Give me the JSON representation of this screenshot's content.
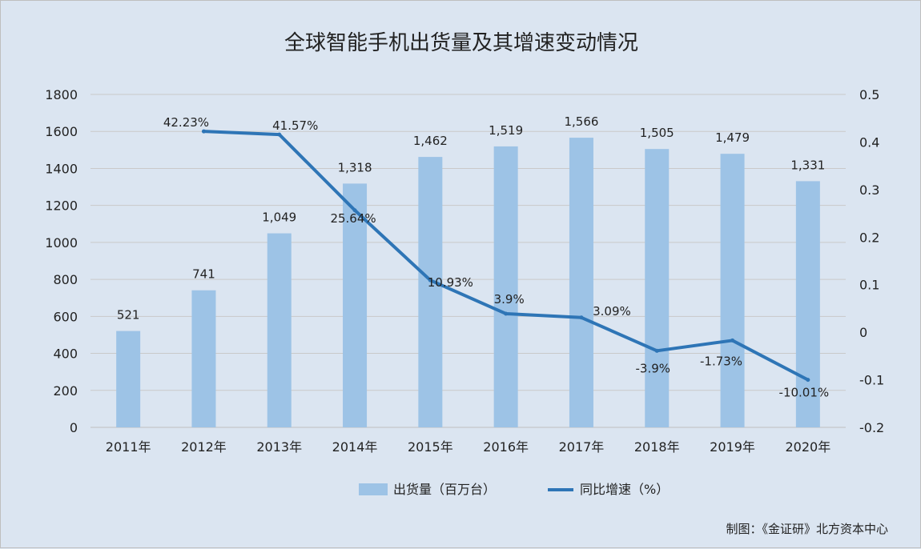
{
  "chart_data": {
    "type": "bar",
    "title": "全球智能手机出货量及其增速变动情况",
    "categories": [
      "2011年",
      "2012年",
      "2013年",
      "2014年",
      "2015年",
      "2016年",
      "2017年",
      "2018年",
      "2019年",
      "2020年"
    ],
    "series": [
      {
        "name": "出货量（百万台）",
        "type": "bar",
        "axis": "left",
        "color": "#9dc3e6",
        "values": [
          521,
          741,
          1049,
          1318,
          1462,
          1519,
          1566,
          1505,
          1479,
          1331
        ],
        "labels": [
          "521",
          "741",
          "1,049",
          "1,318",
          "1,462",
          "1,519",
          "1,566",
          "1,505",
          "1,479",
          "1,331"
        ]
      },
      {
        "name": "同比增速（%）",
        "type": "line",
        "axis": "right",
        "color": "#2e75b6",
        "values": [
          null,
          0.4223,
          0.4157,
          0.2564,
          0.1093,
          0.039,
          0.0309,
          -0.039,
          -0.0173,
          -0.1001
        ],
        "labels": [
          null,
          "42.23%",
          "41.57%",
          "25.64%",
          "10.93%",
          "3.9%",
          "3.09%",
          "-3.9%",
          "-1.73%",
          "-10.01%"
        ]
      }
    ],
    "y_left": {
      "min": 0,
      "max": 1800,
      "ticks": [
        "0",
        "200",
        "400",
        "600",
        "800",
        "1000",
        "1200",
        "1400",
        "1600",
        "1800"
      ]
    },
    "y_right": {
      "min": -0.2,
      "max": 0.5,
      "ticks": [
        "-0.2",
        "-0.1",
        "0",
        "0.1",
        "0.2",
        "0.3",
        "0.4",
        "0.5"
      ]
    },
    "grid": true,
    "legend_position": "bottom",
    "credit": "制图：《金证研》北方资本中心"
  }
}
